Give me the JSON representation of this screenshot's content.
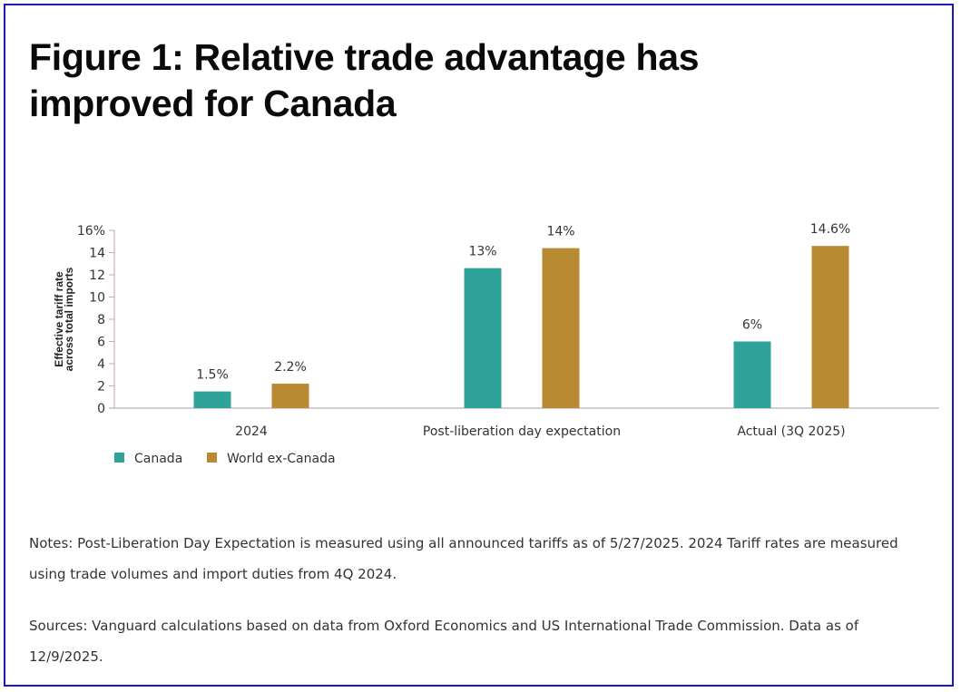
{
  "title": "Figure 1: Relative trade advantage has improved for Canada",
  "chart_data": {
    "type": "bar",
    "title": "Figure 1: Relative trade advantage has improved for Canada",
    "categories": [
      "2024",
      "Post-liberation day expectation",
      "Actual (3Q 2025)"
    ],
    "series": [
      {
        "name": "Canada",
        "color": "#2fa399",
        "values": [
          1.5,
          12.6,
          6.0
        ],
        "labels": [
          "1.5%",
          "13%",
          "6%"
        ]
      },
      {
        "name": "World ex-Canada",
        "color": "#b88a32",
        "values": [
          2.2,
          14.4,
          14.6
        ],
        "labels": [
          "2.2%",
          "14%",
          "14.6%"
        ]
      }
    ],
    "xlabel": "",
    "ylabel": "Effective tariff rate across total imports",
    "ylabel_lines": [
      "Effective tariff rate",
      "across total imports"
    ],
    "ylim": [
      0,
      16
    ],
    "yticks": [
      0,
      2,
      4,
      6,
      8,
      10,
      12,
      14,
      16
    ],
    "ytick_labels": [
      "0",
      "2",
      "4",
      "6",
      "8",
      "10",
      "12",
      "14",
      "16%"
    ],
    "grid": false,
    "legend_position": "bottom-left"
  },
  "notes": "Notes: Post-Liberation Day Expectation is measured using all announced tariffs as of 5/27/2025. 2024 Tariff rates are measured using trade volumes and import duties from 4Q 2024.",
  "sources": "Sources: Vanguard calculations based on data from Oxford Economics and US International Trade Commission. Data as of 12/9/2025."
}
